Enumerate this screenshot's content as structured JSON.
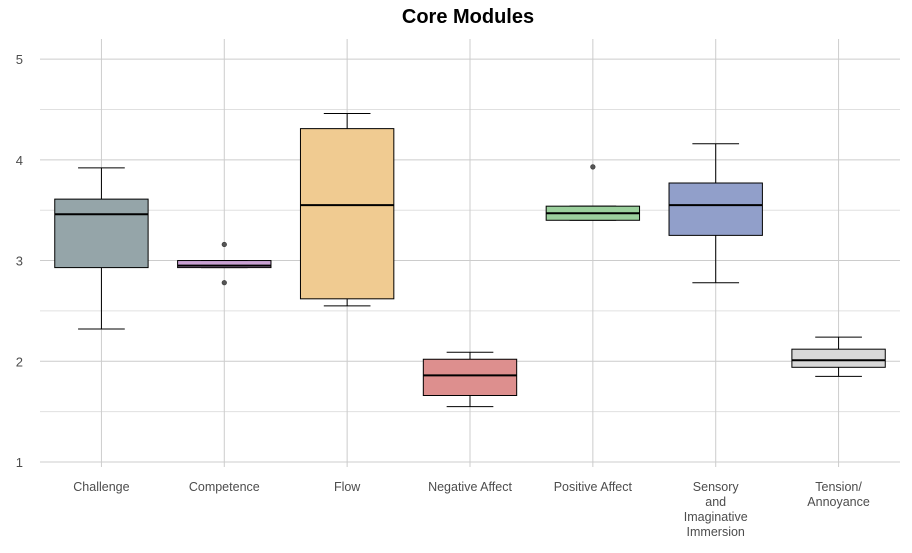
{
  "chart_data": {
    "type": "boxplot",
    "title": "Core Modules",
    "xlabel": "",
    "ylabel": "",
    "ylim": [
      0.95,
      5.2
    ],
    "yticks": [
      1,
      2,
      3,
      4,
      5
    ],
    "grid": true,
    "legend": "none",
    "categories": [
      {
        "label": [
          "Challenge"
        ],
        "color": "#95a5a9",
        "whisker_low": 2.32,
        "q1": 2.93,
        "median": 3.46,
        "q3": 3.61,
        "whisker_high": 3.92,
        "outliers": []
      },
      {
        "label": [
          "Competence"
        ],
        "color": "#c9a1d3",
        "whisker_low": 2.93,
        "q1": 2.93,
        "median": 2.95,
        "q3": 3.0,
        "whisker_high": 3.0,
        "outliers": [
          2.78,
          3.16
        ]
      },
      {
        "label": [
          "Flow"
        ],
        "color": "#f0cb91",
        "whisker_low": 2.55,
        "q1": 2.62,
        "median": 3.55,
        "q3": 4.31,
        "whisker_high": 4.46,
        "outliers": []
      },
      {
        "label": [
          "Negative Affect"
        ],
        "color": "#dd8f8e",
        "whisker_low": 1.55,
        "q1": 1.66,
        "median": 1.86,
        "q3": 2.02,
        "whisker_high": 2.09,
        "outliers": []
      },
      {
        "label": [
          "Positive Affect"
        ],
        "color": "#9bd09d",
        "whisker_low": 3.4,
        "q1": 3.4,
        "median": 3.47,
        "q3": 3.54,
        "whisker_high": 3.54,
        "outliers": [
          3.93
        ]
      },
      {
        "label": [
          "Sensory",
          "and",
          "Imaginative",
          "Immersion"
        ],
        "color": "#919fca",
        "whisker_low": 2.78,
        "q1": 3.25,
        "median": 3.55,
        "q3": 3.77,
        "whisker_high": 4.16,
        "outliers": []
      },
      {
        "label": [
          "Tension/",
          "Annoyance"
        ],
        "color": "#d8d8d8",
        "whisker_low": 1.85,
        "q1": 1.94,
        "median": 2.01,
        "q3": 2.12,
        "whisker_high": 2.24,
        "outliers": []
      }
    ]
  }
}
